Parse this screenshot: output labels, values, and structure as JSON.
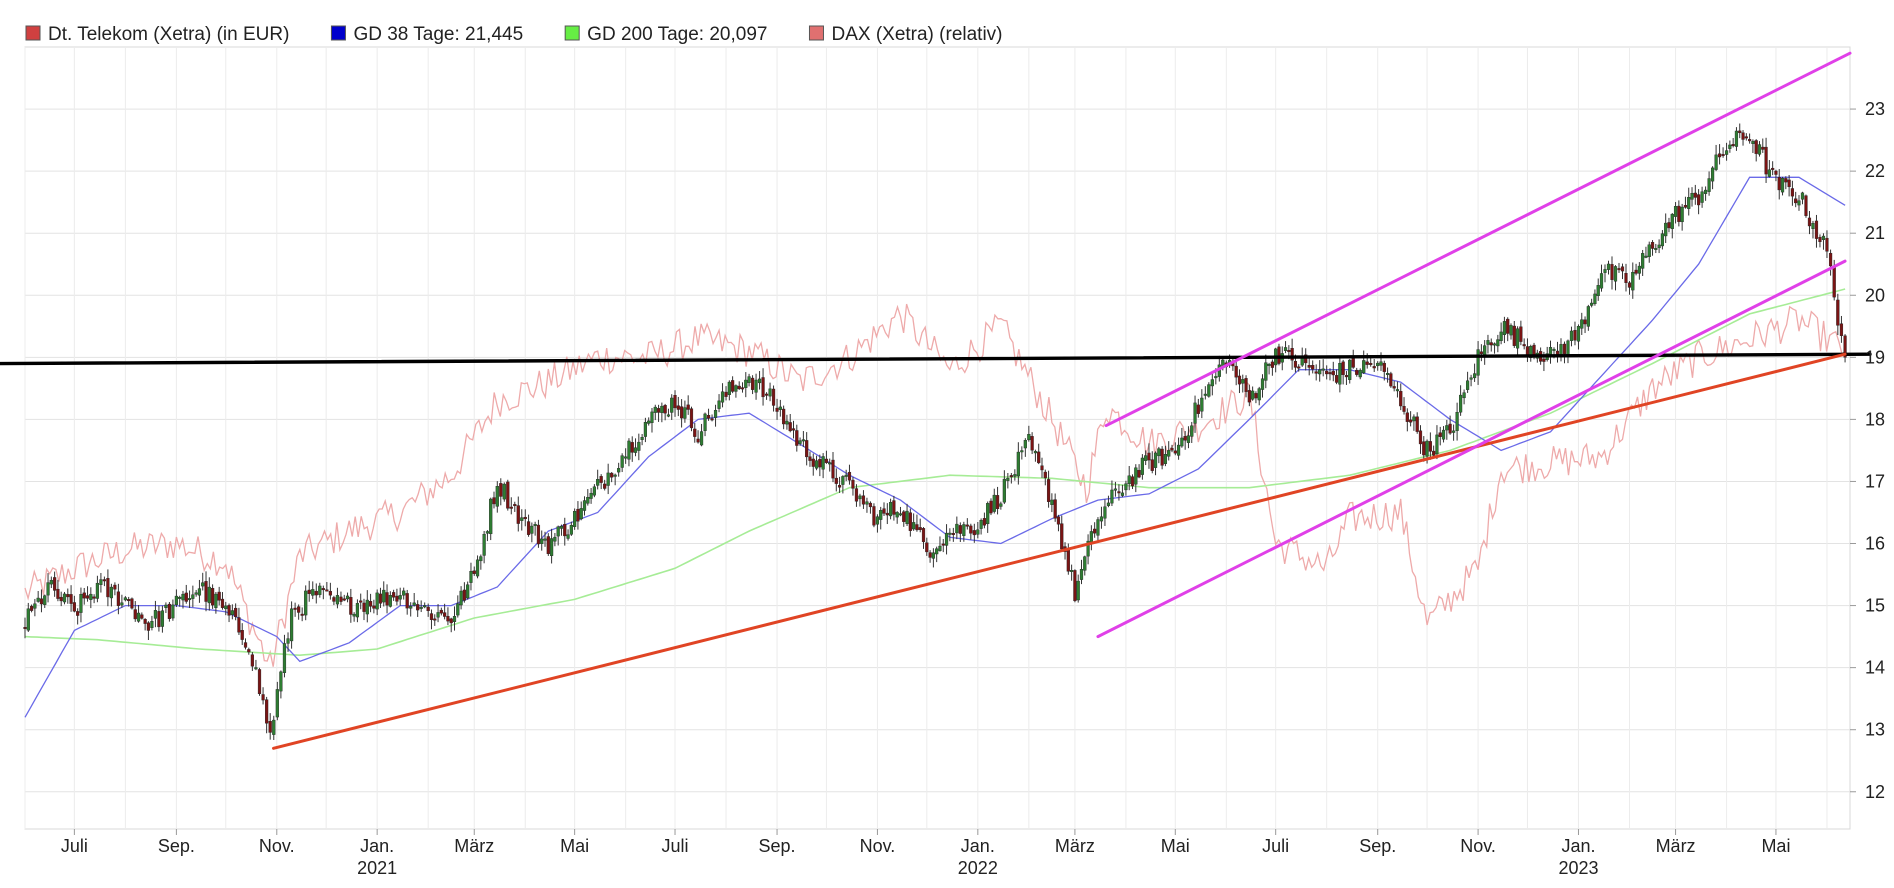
{
  "chart_data": {
    "type": "line",
    "subtype": "candlestick",
    "ylim": [
      11.4,
      24.0
    ],
    "y_ticks": [
      12,
      13,
      14,
      15,
      16,
      17,
      18,
      19,
      20,
      21,
      22,
      23
    ],
    "y_tick_labels": [
      "12",
      "13",
      "14",
      "15",
      "16",
      "17",
      "18",
      "19",
      "20",
      "21",
      "22",
      "23"
    ],
    "x_start": "2020-06-01",
    "x_end": "2023-06-15",
    "x_ticks": [
      {
        "date": "2020-07-01",
        "label": "Juli"
      },
      {
        "date": "2020-09-01",
        "label": "Sep."
      },
      {
        "date": "2020-11-01",
        "label": "Nov."
      },
      {
        "date": "2021-01-01",
        "label": "Jan."
      },
      {
        "date": "2021-03-01",
        "label": "März"
      },
      {
        "date": "2021-05-01",
        "label": "Mai"
      },
      {
        "date": "2021-07-01",
        "label": "Juli"
      },
      {
        "date": "2021-09-01",
        "label": "Sep."
      },
      {
        "date": "2021-11-01",
        "label": "Nov."
      },
      {
        "date": "2022-01-01",
        "label": "Jan."
      },
      {
        "date": "2022-03-01",
        "label": "März"
      },
      {
        "date": "2022-05-01",
        "label": "Mai"
      },
      {
        "date": "2022-07-01",
        "label": "Juli"
      },
      {
        "date": "2022-09-01",
        "label": "Sep."
      },
      {
        "date": "2022-11-01",
        "label": "Nov."
      },
      {
        "date": "2023-01-01",
        "label": "Jan."
      },
      {
        "date": "2023-03-01",
        "label": "März"
      },
      {
        "date": "2023-05-01",
        "label": "Mai"
      }
    ],
    "year_labels": [
      {
        "date": "2021-01-01",
        "label": "2021"
      },
      {
        "date": "2022-01-01",
        "label": "2022"
      },
      {
        "date": "2023-01-01",
        "label": "2023"
      }
    ],
    "legend": [
      {
        "label": "Dt. Telekom (Xetra) (in EUR)",
        "color": "#d04040"
      },
      {
        "label": "GD 38 Tage: 21,445",
        "color": "#0000cc"
      },
      {
        "label": "GD 200 Tage: 20,097",
        "color": "#66ee44"
      },
      {
        "label": "DAX (Xetra) (relativ)",
        "color": "#e07070"
      }
    ],
    "grid": true,
    "legend_position": "top-left",
    "series": [
      {
        "name": "Dt. Telekom (Xetra) (in EUR)",
        "style": "candlestick",
        "up_color": "#2e7d32",
        "down_color": "#8b1a1a",
        "x": [
          "2020-06-01",
          "2020-06-15",
          "2020-07-01",
          "2020-07-15",
          "2020-08-01",
          "2020-08-15",
          "2020-09-01",
          "2020-09-15",
          "2020-10-01",
          "2020-10-15",
          "2020-10-28",
          "2020-11-10",
          "2020-11-25",
          "2020-12-10",
          "2021-01-01",
          "2021-01-15",
          "2021-02-01",
          "2021-02-15",
          "2021-03-01",
          "2021-03-15",
          "2021-04-01",
          "2021-04-15",
          "2021-05-01",
          "2021-05-15",
          "2021-06-01",
          "2021-06-15",
          "2021-07-01",
          "2021-07-15",
          "2021-08-01",
          "2021-08-15",
          "2021-09-01",
          "2021-09-15",
          "2021-10-01",
          "2021-10-15",
          "2021-11-01",
          "2021-11-15",
          "2021-12-01",
          "2021-12-15",
          "2022-01-01",
          "2022-01-15",
          "2022-02-01",
          "2022-02-15",
          "2022-03-01",
          "2022-03-15",
          "2022-04-01",
          "2022-04-15",
          "2022-05-01",
          "2022-05-15",
          "2022-06-01",
          "2022-06-15",
          "2022-07-01",
          "2022-07-15",
          "2022-08-01",
          "2022-08-15",
          "2022-09-01",
          "2022-09-15",
          "2022-10-01",
          "2022-10-15",
          "2022-11-01",
          "2022-11-15",
          "2022-12-01",
          "2022-12-15",
          "2023-01-01",
          "2023-01-15",
          "2023-02-01",
          "2023-02-15",
          "2023-03-01",
          "2023-03-15",
          "2023-04-01",
          "2023-04-15",
          "2023-05-01",
          "2023-05-15",
          "2023-06-01",
          "2023-06-12"
        ],
        "values": [
          14.7,
          15.3,
          14.9,
          15.3,
          15.1,
          14.7,
          15.0,
          15.3,
          14.9,
          14.4,
          12.9,
          14.9,
          15.2,
          15.0,
          15.1,
          15.2,
          14.9,
          14.8,
          15.5,
          17.0,
          16.3,
          16.0,
          16.4,
          16.9,
          17.5,
          18.0,
          18.3,
          17.8,
          18.4,
          18.7,
          18.2,
          17.6,
          17.2,
          16.9,
          16.4,
          16.6,
          15.9,
          16.2,
          16.3,
          16.8,
          17.6,
          16.7,
          15.2,
          16.4,
          17.0,
          17.3,
          17.5,
          18.2,
          19.0,
          18.3,
          19.1,
          18.9,
          18.7,
          18.8,
          18.9,
          18.3,
          17.5,
          17.8,
          19.0,
          19.5,
          19.2,
          19.0,
          19.4,
          20.4,
          20.2,
          20.8,
          21.3,
          21.6,
          22.4,
          22.6,
          21.8,
          21.6,
          20.7,
          19.0
        ]
      },
      {
        "name": "GD 38 Tage: 21,445",
        "x": [
          "2020-06-01",
          "2020-07-01",
          "2020-08-01",
          "2020-09-01",
          "2020-10-01",
          "2020-11-01",
          "2020-11-15",
          "2020-12-15",
          "2021-01-15",
          "2021-02-15",
          "2021-03-15",
          "2021-04-15",
          "2021-05-15",
          "2021-06-15",
          "2021-07-15",
          "2021-08-15",
          "2021-09-15",
          "2021-10-15",
          "2021-11-15",
          "2021-12-15",
          "2022-01-15",
          "2022-02-15",
          "2022-03-15",
          "2022-04-15",
          "2022-05-15",
          "2022-06-15",
          "2022-07-15",
          "2022-08-15",
          "2022-09-15",
          "2022-10-15",
          "2022-11-15",
          "2022-12-15",
          "2023-01-15",
          "2023-02-15",
          "2023-03-15",
          "2023-04-15",
          "2023-05-15",
          "2023-06-12"
        ],
        "values": [
          13.2,
          14.6,
          15.0,
          15.0,
          14.9,
          14.5,
          14.1,
          14.4,
          15.0,
          15.0,
          15.3,
          16.2,
          16.5,
          17.4,
          18.0,
          18.1,
          17.6,
          17.1,
          16.7,
          16.1,
          16.0,
          16.4,
          16.7,
          16.8,
          17.2,
          18.0,
          18.8,
          18.8,
          18.6,
          18.0,
          17.5,
          17.8,
          18.7,
          19.6,
          20.5,
          21.9,
          21.9,
          21.45
        ]
      },
      {
        "name": "GD 200 Tage: 20,097",
        "x": [
          "2020-06-01",
          "2020-07-15",
          "2020-09-15",
          "2020-11-15",
          "2021-01-01",
          "2021-03-01",
          "2021-05-01",
          "2021-07-01",
          "2021-08-15",
          "2021-10-15",
          "2021-12-15",
          "2022-02-15",
          "2022-04-15",
          "2022-06-15",
          "2022-08-15",
          "2022-10-15",
          "2022-12-15",
          "2023-02-15",
          "2023-04-15",
          "2023-06-12"
        ],
        "values": [
          14.5,
          14.45,
          14.3,
          14.2,
          14.3,
          14.8,
          15.1,
          15.6,
          16.2,
          16.9,
          17.1,
          17.05,
          16.9,
          16.9,
          17.1,
          17.5,
          18.1,
          18.9,
          19.7,
          20.1
        ]
      },
      {
        "name": "DAX (Xetra) (relativ)",
        "x": [
          "2020-06-01",
          "2020-07-01",
          "2020-08-01",
          "2020-09-01",
          "2020-10-01",
          "2020-10-28",
          "2020-11-15",
          "2020-12-15",
          "2021-01-15",
          "2021-02-15",
          "2021-03-15",
          "2021-04-15",
          "2021-05-15",
          "2021-06-15",
          "2021-07-15",
          "2021-08-15",
          "2021-09-15",
          "2021-10-15",
          "2021-11-15",
          "2021-12-15",
          "2022-01-15",
          "2022-02-15",
          "2022-03-08",
          "2022-03-20",
          "2022-04-15",
          "2022-05-15",
          "2022-06-15",
          "2022-07-01",
          "2022-08-01",
          "2022-08-15",
          "2022-09-15",
          "2022-10-01",
          "2022-11-01",
          "2022-11-15",
          "2022-12-15",
          "2023-01-15",
          "2023-02-15",
          "2023-03-15",
          "2023-04-15",
          "2023-05-15",
          "2023-06-12"
        ],
        "values": [
          15.2,
          15.6,
          15.9,
          16.0,
          15.7,
          14.0,
          15.8,
          16.2,
          16.5,
          17.1,
          18.3,
          18.6,
          19.0,
          19.0,
          19.3,
          19.1,
          18.6,
          19.0,
          19.7,
          18.8,
          19.5,
          18.0,
          16.9,
          18.2,
          17.6,
          17.9,
          18.4,
          16.0,
          15.6,
          16.4,
          16.5,
          14.7,
          15.6,
          17.2,
          17.3,
          17.4,
          18.5,
          19.0,
          19.3,
          19.6,
          19.1
        ]
      }
    ],
    "trendlines": [
      {
        "name": "horizontal resistance",
        "color": "#000000",
        "x": [
          "2020-06-01",
          "2023-06-15"
        ],
        "values": [
          18.9,
          19.05
        ]
      },
      {
        "name": "support",
        "color": "#e04424",
        "x": [
          "2020-10-30",
          "2023-06-12"
        ],
        "values": [
          12.7,
          19.05
        ]
      },
      {
        "name": "channel upper",
        "color": "#e040e8",
        "x": [
          "2022-03-20",
          "2023-06-15"
        ],
        "values": [
          17.9,
          23.9
        ]
      },
      {
        "name": "channel lower",
        "color": "#e040e8",
        "x": [
          "2022-03-15",
          "2023-06-12"
        ],
        "values": [
          14.5,
          20.55
        ]
      }
    ]
  }
}
